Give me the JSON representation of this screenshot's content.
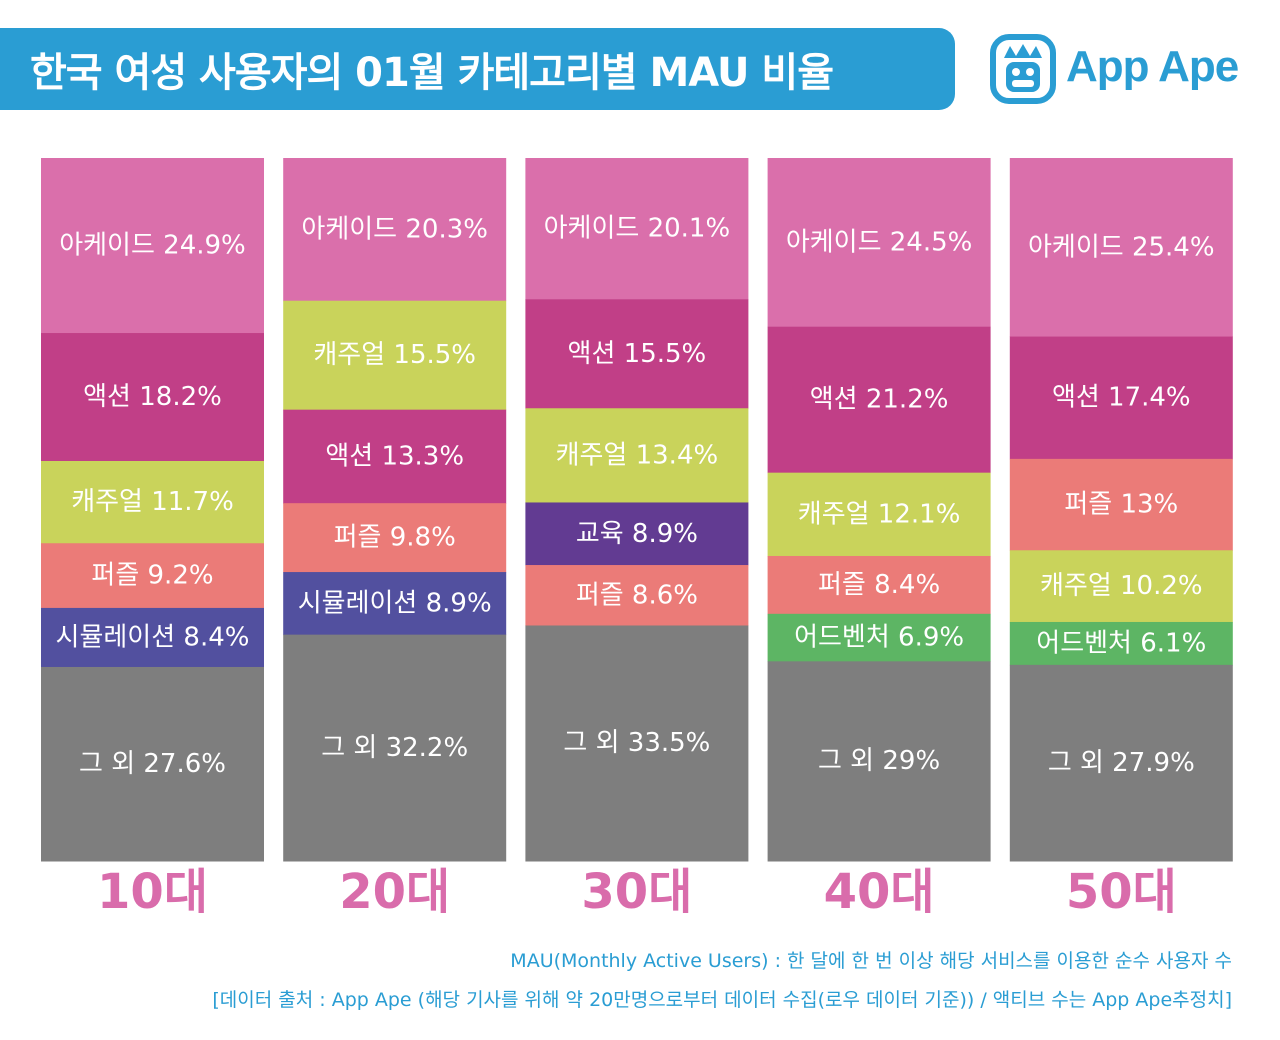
{
  "title": "한국 여성 사용자의 01월 카테고리별 MAU 비율",
  "logo": {
    "name": "App Ape",
    "icon": "ape-face-icon"
  },
  "colors": {
    "banner": "#2a9dd3",
    "brand": "#2a9dd3",
    "category_label": "#d96cab",
    "note": "#2a9dd3",
    "아케이드": "#da6fab",
    "액션": "#c13f87",
    "캐주얼": "#c9d35b",
    "퍼즐": "#eb7b78",
    "시뮬레이션": "#52509f",
    "교육": "#623b92",
    "어드벤처": "#5db564",
    "그 외": "#7e7e7e"
  },
  "chart_data": {
    "type": "bar",
    "stacked": true,
    "title": "한국 여성 사용자의 01월 카테고리별 MAU 비율",
    "categories": [
      "10대",
      "20대",
      "30대",
      "40대",
      "50대"
    ],
    "unit": "%",
    "ylim": [
      0,
      100
    ],
    "stacks": [
      {
        "category": "10대",
        "segments": [
          {
            "name": "아케이드",
            "value": 24.9,
            "label": "아케이드 24.9%"
          },
          {
            "name": "액션",
            "value": 18.2,
            "label": "액션 18.2%"
          },
          {
            "name": "캐주얼",
            "value": 11.7,
            "label": "캐주얼 11.7%"
          },
          {
            "name": "퍼즐",
            "value": 9.2,
            "label": "퍼즐 9.2%"
          },
          {
            "name": "시뮬레이션",
            "value": 8.4,
            "label": "시뮬레이션 8.4%"
          },
          {
            "name": "그 외",
            "value": 27.6,
            "label": "그 외 27.6%"
          }
        ]
      },
      {
        "category": "20대",
        "segments": [
          {
            "name": "아케이드",
            "value": 20.3,
            "label": "아케이드 20.3%"
          },
          {
            "name": "캐주얼",
            "value": 15.5,
            "label": "캐주얼 15.5%"
          },
          {
            "name": "액션",
            "value": 13.3,
            "label": "액션 13.3%"
          },
          {
            "name": "퍼즐",
            "value": 9.8,
            "label": "퍼즐 9.8%"
          },
          {
            "name": "시뮬레이션",
            "value": 8.9,
            "label": "시뮬레이션 8.9%"
          },
          {
            "name": "그 외",
            "value": 32.2,
            "label": "그 외 32.2%"
          }
        ]
      },
      {
        "category": "30대",
        "segments": [
          {
            "name": "아케이드",
            "value": 20.1,
            "label": "아케이드 20.1%"
          },
          {
            "name": "액션",
            "value": 15.5,
            "label": "액션 15.5%"
          },
          {
            "name": "캐주얼",
            "value": 13.4,
            "label": "캐주얼 13.4%"
          },
          {
            "name": "교육",
            "value": 8.9,
            "label": "교육 8.9%"
          },
          {
            "name": "퍼즐",
            "value": 8.6,
            "label": "퍼즐 8.6%"
          },
          {
            "name": "그 외",
            "value": 33.5,
            "label": "그 외 33.5%"
          }
        ]
      },
      {
        "category": "40대",
        "segments": [
          {
            "name": "아케이드",
            "value": 24.5,
            "label": "아케이드 24.5%"
          },
          {
            "name": "액션",
            "value": 21.2,
            "label": "액션 21.2%"
          },
          {
            "name": "캐주얼",
            "value": 12.1,
            "label": "캐주얼 12.1%"
          },
          {
            "name": "퍼즐",
            "value": 8.4,
            "label": "퍼즐 8.4%"
          },
          {
            "name": "어드벤처",
            "value": 6.9,
            "label": "어드벤처 6.9%"
          },
          {
            "name": "그 외",
            "value": 29,
            "label": "그 외 29%"
          }
        ]
      },
      {
        "category": "50대",
        "segments": [
          {
            "name": "아케이드",
            "value": 25.4,
            "label": "아케이드 25.4%"
          },
          {
            "name": "액션",
            "value": 17.4,
            "label": "액션 17.4%"
          },
          {
            "name": "퍼즐",
            "value": 13,
            "label": "퍼즐 13%"
          },
          {
            "name": "캐주얼",
            "value": 10.2,
            "label": "캐주얼 10.2%"
          },
          {
            "name": "어드벤처",
            "value": 6.1,
            "label": "어드벤처 6.1%"
          },
          {
            "name": "그 외",
            "value": 27.9,
            "label": "그 외 27.9%"
          }
        ]
      }
    ]
  },
  "notes": {
    "definition": "MAU(Monthly Active Users) : 한 달에 한 번 이상 해당 서비스를 이용한 순수 사용자 수",
    "source": "[데이터 출처 : App Ape (해당 기사를 위해 약 20만명으로부터 데이터 수집(로우 데이터 기준)) / 액티브 수는 App Ape추정치]"
  }
}
